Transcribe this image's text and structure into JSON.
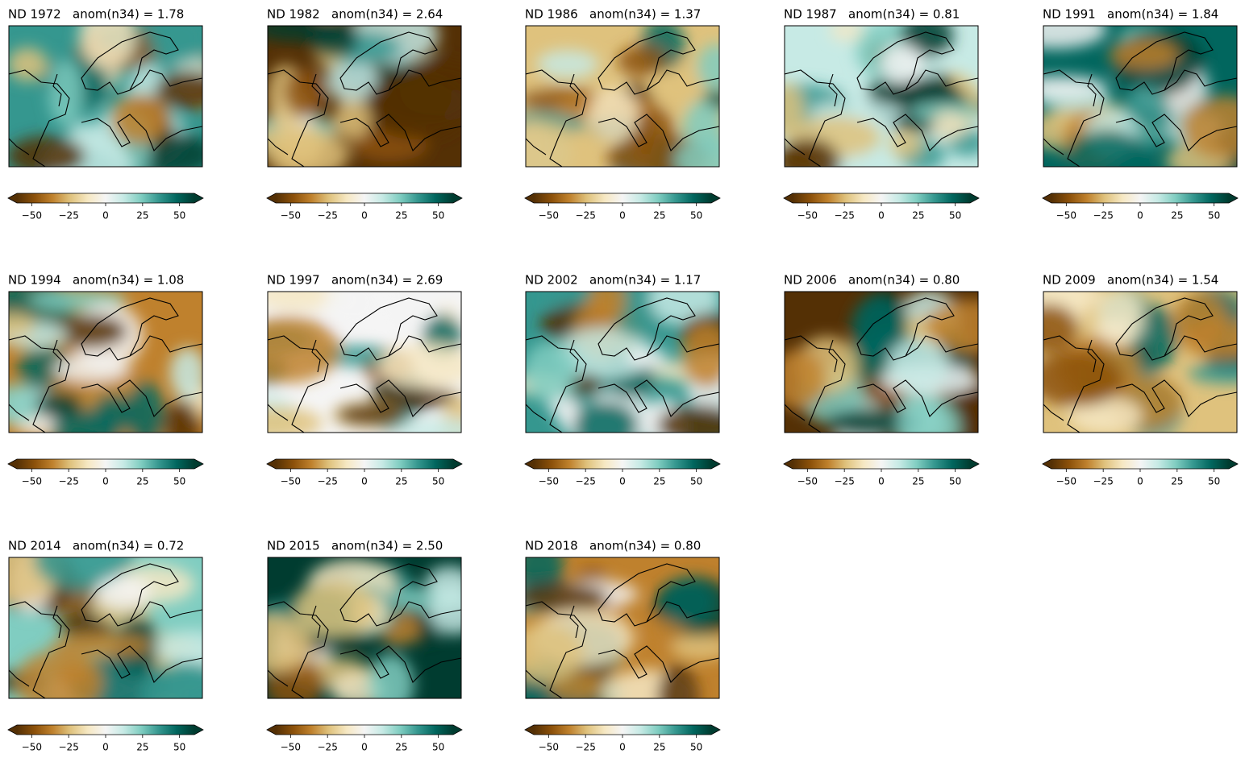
{
  "chart_data": [
    {
      "type": "map",
      "title": "ND 1972   anom(n34) = 1.78",
      "clim": [
        -60,
        60
      ],
      "cticks": [
        {
          "value": -50,
          "label": "−50"
        },
        {
          "value": -25,
          "label": "−25"
        },
        0,
        25,
        50
      ]
    },
    {
      "type": "map",
      "title": "ND 1982   anom(n34) = 2.64",
      "clim": [
        -60,
        60
      ],
      "cticks": [
        {
          "value": -50,
          "label": "−50"
        },
        {
          "value": -25,
          "label": "−25"
        },
        0,
        25,
        50
      ]
    },
    {
      "type": "map",
      "title": "ND 1986   anom(n34) = 1.37",
      "clim": [
        -60,
        60
      ],
      "cticks": [
        {
          "value": -50,
          "label": "−50"
        },
        {
          "value": -25,
          "label": "−25"
        },
        0,
        25,
        50
      ]
    },
    {
      "type": "map",
      "title": "ND 1987   anom(n34) = 0.81",
      "clim": [
        -60,
        60
      ],
      "cticks": [
        {
          "value": -50,
          "label": "−50"
        },
        {
          "value": -25,
          "label": "−25"
        },
        0,
        25,
        50
      ]
    },
    {
      "type": "map",
      "title": "ND 1991   anom(n34) = 1.84",
      "clim": [
        -60,
        60
      ],
      "cticks": [
        {
          "value": -50,
          "label": "−50"
        },
        {
          "value": -25,
          "label": "−25"
        },
        0,
        25,
        50
      ]
    },
    {
      "type": "map",
      "title": "ND 1994   anom(n34) = 1.08",
      "clim": [
        -60,
        60
      ],
      "cticks": [
        {
          "value": -50,
          "label": "−50"
        },
        {
          "value": -25,
          "label": "−25"
        },
        0,
        25,
        50
      ]
    },
    {
      "type": "map",
      "title": "ND 1997   anom(n34) = 2.69",
      "clim": [
        -60,
        60
      ],
      "cticks": [
        {
          "value": -50,
          "label": "−50"
        },
        {
          "value": -25,
          "label": "−25"
        },
        0,
        25,
        50
      ]
    },
    {
      "type": "map",
      "title": "ND 2002   anom(n34) = 1.17",
      "clim": [
        -60,
        60
      ],
      "cticks": [
        {
          "value": -50,
          "label": "−50"
        },
        {
          "value": -25,
          "label": "−25"
        },
        0,
        25,
        50
      ]
    },
    {
      "type": "map",
      "title": "ND 2006   anom(n34) = 0.80",
      "clim": [
        -60,
        60
      ],
      "cticks": [
        {
          "value": -50,
          "label": "−50"
        },
        {
          "value": -25,
          "label": "−25"
        },
        0,
        25,
        50
      ]
    },
    {
      "type": "map",
      "title": "ND 2009   anom(n34) = 1.54",
      "clim": [
        -60,
        60
      ],
      "cticks": [
        {
          "value": -50,
          "label": "−50"
        },
        {
          "value": -25,
          "label": "−25"
        },
        0,
        25,
        50
      ]
    },
    {
      "type": "map",
      "title": "ND 2014   anom(n34) = 0.72",
      "clim": [
        -60,
        60
      ],
      "cticks": [
        {
          "value": -50,
          "label": "−50"
        },
        {
          "value": -25,
          "label": "−25"
        },
        0,
        25,
        50
      ]
    },
    {
      "type": "map",
      "title": "ND 2015   anom(n34) = 2.50",
      "clim": [
        -60,
        60
      ],
      "cticks": [
        {
          "value": -50,
          "label": "−50"
        },
        {
          "value": -25,
          "label": "−25"
        },
        0,
        25,
        50
      ]
    },
    {
      "type": "map",
      "title": "ND 2018   anom(n34) = 0.80",
      "clim": [
        -60,
        60
      ],
      "cticks": [
        {
          "value": -50,
          "label": "−50"
        },
        {
          "value": -25,
          "label": "−25"
        },
        0,
        25,
        50
      ]
    }
  ]
}
